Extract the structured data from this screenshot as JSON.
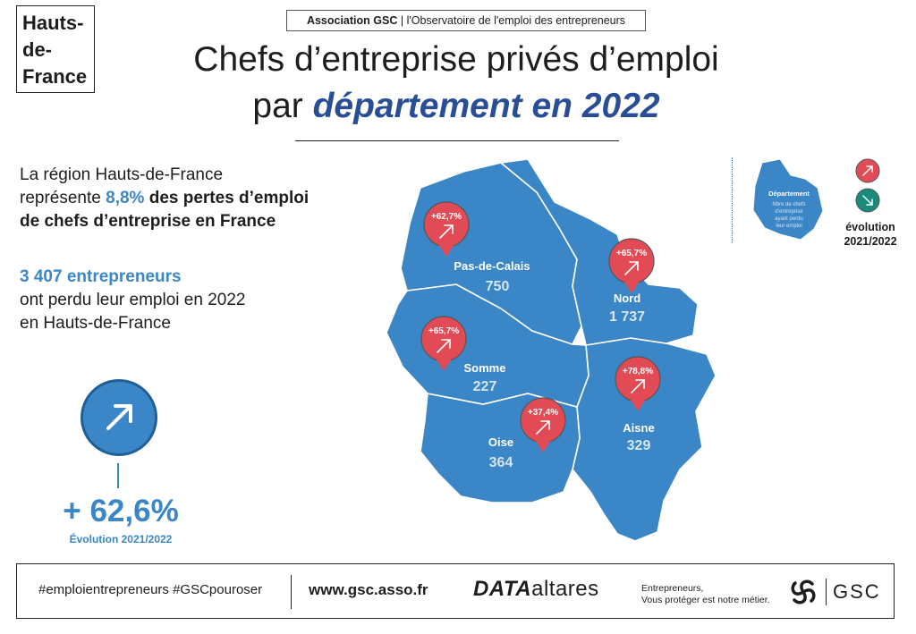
{
  "header": {
    "region_line1": "Hauts-",
    "region_line2": "de-",
    "region_line3": "France",
    "assoc_name": "Association GSC",
    "assoc_sub": "| l'Observatoire de l'emploi des entrepreneurs",
    "title_line1": "Chefs d’entreprise privés d’emploi",
    "title_line2_pre": "par ",
    "title_line2_hl": "département en 2022"
  },
  "intro": {
    "line1": "La région Hauts-de-France",
    "line2_pre": "représente ",
    "line2_pct": "8,8%",
    "line2_post": " des pertes d’emploi",
    "line3": "de chefs d’entreprise en France"
  },
  "stat": {
    "count": "3 407 entrepreneurs",
    "line2": "ont perdu leur emploi en 2022",
    "line3": "en Hauts-de-France"
  },
  "region_evolution": {
    "value": "+ 62,6%",
    "caption": "Évolution 2021/2022"
  },
  "legend": {
    "dept_label": "Département",
    "dept_desc_1": "Nbre de chefs",
    "dept_desc_2": "d'entreprise",
    "dept_desc_3": "ayant perdu",
    "dept_desc_4": "leur emploi",
    "evolution_line1": "évolution",
    "evolution_line2": "2021/2022"
  },
  "map": {
    "colors": {
      "department_fill": "#3a86c6",
      "border": "#ffffff",
      "pin_red": "#e24b55",
      "pin_green": "#1a8a7e",
      "text_blue": "#3a86c6"
    },
    "departments": [
      {
        "name": "Pas-de-Calais",
        "value": "750",
        "evolution": "+62,7%"
      },
      {
        "name": "Nord",
        "value": "1 737",
        "evolution": "+65,7%"
      },
      {
        "name": "Somme",
        "value": "227",
        "evolution": "+65,7%"
      },
      {
        "name": "Oise",
        "value": "364",
        "evolution": "+37,4%"
      },
      {
        "name": "Aisne",
        "value": "329",
        "evolution": "+78,8%"
      }
    ]
  },
  "footer": {
    "hashtags": "#emploientrepreneurs #GSCpouroser",
    "url": "www.gsc.asso.fr",
    "partner_prefix": "DATA",
    "partner_name": "altares",
    "tagline_1": "Entrepreneurs,",
    "tagline_2": "Vous protéger est notre métier.",
    "brand": "GSC"
  }
}
